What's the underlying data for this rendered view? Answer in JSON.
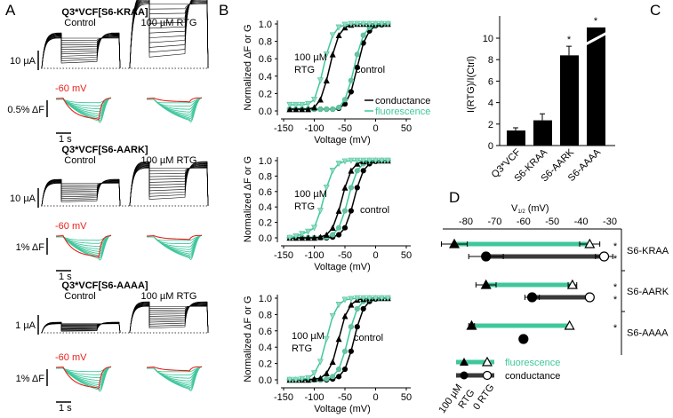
{
  "colors": {
    "conductance": "#000000",
    "fluorescence": "#3fc79c",
    "control_trace": "#000000",
    "highlight_trace": "#e8201a",
    "conductance_bar": "#3a3a3a"
  },
  "panel_labels": {
    "a": "A",
    "b": "B",
    "c": "C",
    "d": "D"
  },
  "panel_a": {
    "sections": [
      {
        "title": "Q3*VCF[S6-KRAA]",
        "control": "Control",
        "rtg": "100 µM RTG",
        "current_scale": "10 µA",
        "fluor_scale": "0.5% ΔF",
        "voltage": "-60 mV",
        "time_scale": "1 s"
      },
      {
        "title": "Q3*VCF[S6-AARK]",
        "control": "Control",
        "rtg": "100 µM RTG",
        "current_scale": "10 µA",
        "fluor_scale": "1% ΔF",
        "voltage": "-60 mV",
        "time_scale": "1 s"
      },
      {
        "title": "Q3*VCF[S6-AAAA]",
        "control": "Control",
        "rtg": "100 µM RTG",
        "current_scale": "1 µA",
        "fluor_scale": "1% ΔF",
        "voltage": "-60 mV",
        "time_scale": "1 s"
      }
    ]
  },
  "chart_data": [
    {
      "panel": "B-top",
      "type": "line",
      "xlabel": "Voltage (mV)",
      "ylabel": "Normalized ΔF or G",
      "xlim": [
        -150,
        50
      ],
      "ylim": [
        0,
        1.0
      ],
      "xticks": [
        "-150",
        "-100",
        "-50",
        "0",
        "50"
      ],
      "yticks": [
        "0.0",
        "0.2",
        "0.4",
        "0.6",
        "0.8",
        "1.0"
      ],
      "annotations": {
        "rtg_line1": "100 µM",
        "rtg_line2": "RTG",
        "control": "control"
      },
      "legend": {
        "position": "bottom-right",
        "entries": [
          "conductance",
          "fluorescence"
        ]
      },
      "x": [
        -140,
        -130,
        -120,
        -110,
        -100,
        -90,
        -80,
        -70,
        -60,
        -50,
        -40,
        -30,
        -20,
        -10,
        0,
        10,
        20
      ],
      "series": [
        {
          "name": "conductance",
          "condition": "control",
          "values": [
            0.02,
            0.02,
            0.02,
            0.02,
            0.02,
            0.02,
            0.02,
            0.02,
            0.03,
            0.08,
            0.22,
            0.5,
            0.78,
            0.92,
            0.98,
            0.99,
            1.0
          ]
        },
        {
          "name": "fluorescence",
          "condition": "control",
          "values": [
            0.02,
            0.02,
            0.02,
            0.02,
            0.02,
            0.02,
            0.02,
            0.02,
            0.04,
            0.13,
            0.35,
            0.65,
            0.87,
            0.96,
            0.99,
            1.0,
            1.0
          ]
        },
        {
          "name": "conductance",
          "condition": "100 µM RTG",
          "values": [
            0.02,
            0.02,
            0.02,
            0.02,
            0.04,
            0.13,
            0.35,
            0.65,
            0.87,
            0.96,
            0.99,
            1.0,
            1.0,
            1.0,
            1.0,
            1.0,
            1.0
          ]
        },
        {
          "name": "fluorescence",
          "condition": "100 µM RTG",
          "values": [
            0.07,
            0.07,
            0.07,
            0.08,
            0.13,
            0.35,
            0.65,
            0.87,
            0.96,
            0.99,
            1.0,
            1.0,
            1.0,
            1.0,
            1.0,
            1.0,
            1.0
          ]
        }
      ]
    },
    {
      "panel": "B-middle",
      "type": "line",
      "xlabel": "Voltage (mV)",
      "ylabel": "Normalized ΔF or G",
      "xlim": [
        -150,
        50
      ],
      "ylim": [
        0,
        1.0
      ],
      "xticks": [
        "-150",
        "-100",
        "-50",
        "0",
        "50"
      ],
      "yticks": [
        "0.0",
        "0.2",
        "0.4",
        "0.6",
        "0.8",
        "1.0"
      ],
      "annotations": {
        "rtg_line1": "100 µM",
        "rtg_line2": "RTG",
        "control": "control"
      },
      "x": [
        -140,
        -130,
        -120,
        -110,
        -100,
        -90,
        -80,
        -70,
        -60,
        -50,
        -40,
        -30,
        -20,
        -10,
        0,
        10,
        20
      ],
      "series": [
        {
          "name": "conductance",
          "condition": "control",
          "values": [
            0,
            0,
            0,
            0,
            0,
            0,
            0,
            0.01,
            0.04,
            0.13,
            0.35,
            0.65,
            0.87,
            0.96,
            0.99,
            1.0,
            1.0
          ]
        },
        {
          "name": "fluorescence",
          "condition": "control",
          "values": [
            0,
            0,
            0,
            0,
            0,
            0,
            0.01,
            0.04,
            0.13,
            0.35,
            0.65,
            0.87,
            0.96,
            0.99,
            1.0,
            1.0,
            1.0
          ]
        },
        {
          "name": "conductance",
          "condition": "100 µM RTG",
          "values": [
            0,
            0,
            0,
            0,
            0,
            0.01,
            0.04,
            0.13,
            0.35,
            0.65,
            0.87,
            0.96,
            0.99,
            1.0,
            1.0,
            1.0,
            1.0
          ]
        },
        {
          "name": "fluorescence",
          "condition": "100 µM RTG",
          "values": [
            0,
            0.02,
            0.05,
            0.08,
            0.13,
            0.35,
            0.65,
            0.87,
            0.96,
            0.99,
            1.0,
            1.0,
            1.0,
            1.0,
            1.0,
            1.0,
            1.0
          ]
        }
      ]
    },
    {
      "panel": "B-bottom",
      "type": "line",
      "xlabel": "Voltage (mV)",
      "ylabel": "Normalized ΔF or G",
      "xlim": [
        -150,
        50
      ],
      "ylim": [
        0,
        1.0
      ],
      "xticks": [
        "-150",
        "-100",
        "-50",
        "0",
        "50"
      ],
      "yticks": [
        "0.0",
        "0.2",
        "0.4",
        "0.6",
        "0.8",
        "1.0"
      ],
      "annotations": {
        "rtg_line1": "100 µM",
        "rtg_line2": "RTG",
        "control": "control"
      },
      "x": [
        -140,
        -130,
        -120,
        -110,
        -100,
        -90,
        -80,
        -70,
        -60,
        -50,
        -40,
        -30,
        -20,
        -10,
        0,
        10,
        20
      ],
      "series": [
        {
          "name": "conductance",
          "condition": "control",
          "values": [
            0,
            0,
            0,
            0,
            0,
            0,
            0,
            0.01,
            0.04,
            0.13,
            0.35,
            0.65,
            0.87,
            0.96,
            0.99,
            1.0,
            1.0
          ]
        },
        {
          "name": "fluorescence",
          "condition": "control",
          "values": [
            0,
            0,
            0,
            0,
            0,
            0,
            0.01,
            0.04,
            0.13,
            0.35,
            0.65,
            0.87,
            0.96,
            0.99,
            1.0,
            1.0,
            1.0
          ]
        },
        {
          "name": "conductance",
          "condition": "100 µM RTG",
          "values": [
            0,
            0,
            0,
            0,
            0.01,
            0.02,
            0.08,
            0.22,
            0.5,
            0.78,
            0.92,
            0.98,
            0.99,
            1.0,
            1.0,
            1.0,
            1.0
          ]
        },
        {
          "name": "fluorescence",
          "condition": "100 µM RTG",
          "values": [
            0,
            0,
            0.01,
            0.02,
            0.08,
            0.22,
            0.5,
            0.78,
            0.92,
            0.98,
            0.99,
            1.0,
            1.0,
            1.0,
            1.0,
            1.0,
            1.0
          ]
        }
      ]
    },
    {
      "panel": "C",
      "type": "bar",
      "categories": [
        "Q3*VCF",
        "S6-KRAA",
        "S6-AARK",
        "S6-AAAA"
      ],
      "values": [
        1.4,
        2.35,
        8.4,
        11
      ],
      "errors": [
        0.25,
        0.6,
        0.85,
        0
      ],
      "axis_break_on": "S6-AAAA",
      "significance": [
        "",
        "",
        "*",
        "*"
      ],
      "ylabel": "I(RTG)/I(Ctrl)",
      "ylim": [
        0,
        11.5
      ],
      "yticks": [
        "0",
        "2",
        "4",
        "6",
        "8",
        "10"
      ]
    },
    {
      "panel": "D",
      "type": "scatter",
      "xlabel": "V",
      "xlabel_sub": "1/2",
      "xlabel_unit": "(mV)",
      "xlim": [
        -88,
        -27
      ],
      "xticks": [
        "-80",
        "-70",
        "-60",
        "-50",
        "-40",
        "-30"
      ],
      "groups": [
        {
          "label": "S6-KRAA",
          "fluorescence": {
            "rtg": -84,
            "rtg_err": 4.5,
            "ctrl": -37,
            "ctrl_err": 3.5,
            "sig": "*"
          },
          "conductance": {
            "rtg": -73,
            "rtg_err": 6,
            "ctrl": -32,
            "ctrl_err": 3,
            "sig": "*"
          }
        },
        {
          "label": "S6-AARK",
          "fluorescence": {
            "rtg": -73,
            "rtg_err": 3.5,
            "ctrl": -43,
            "ctrl_err": 1.5,
            "sig": "*"
          },
          "conductance": {
            "rtg": -57,
            "rtg_err": 2.5,
            "ctrl": -37,
            "ctrl_err": 0,
            "sig": "*"
          }
        },
        {
          "label": "S6-AAAA",
          "fluorescence": {
            "rtg": -78,
            "rtg_err": 1,
            "ctrl": -44,
            "ctrl_err": 0,
            "sig": "*"
          },
          "conductance": {
            "rtg": -60,
            "rtg_err": 0,
            "ctrl": null,
            "ctrl_err": 0,
            "sig": ""
          }
        }
      ],
      "legend": {
        "fluorescence": "fluorescence",
        "conductance": "conductance",
        "rtg_line1": "100 µM",
        "rtg_line2": "RTG",
        "ctrl": "0 RTG"
      }
    }
  ]
}
